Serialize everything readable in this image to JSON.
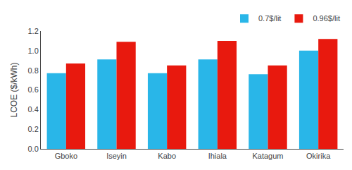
{
  "chart_data": {
    "type": "bar",
    "categories": [
      "Gboko",
      "Iseyin",
      "Kabo",
      "Ihiala",
      "Katagum",
      "Okirika"
    ],
    "series": [
      {
        "name": "0.7$/lit",
        "color": "#29B6E8",
        "values": [
          0.77,
          0.91,
          0.77,
          0.91,
          0.76,
          1.0
        ]
      },
      {
        "name": "0.96$/lit",
        "color": "#E8190E",
        "values": [
          0.87,
          1.09,
          0.85,
          1.1,
          0.85,
          1.12
        ]
      }
    ],
    "ylabel": "LCOE ($/kWh)",
    "ylim": [
      0,
      1.2
    ],
    "yticks": [
      {
        "value": 0,
        "label": "0.0"
      },
      0.2,
      0.4,
      0.6,
      0.8,
      {
        "value": 1.0,
        "label": "1.0"
      },
      1.2
    ],
    "grid": false,
    "legend": "upper right"
  }
}
